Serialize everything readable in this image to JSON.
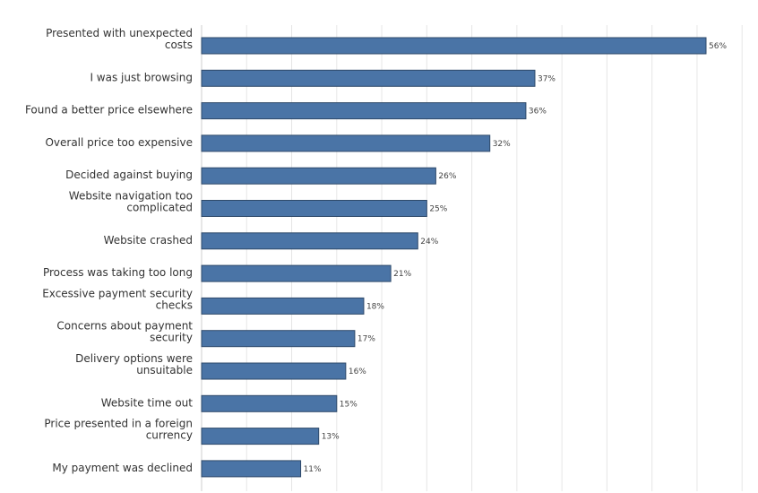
{
  "chart_data": {
    "type": "bar",
    "orientation": "horizontal",
    "title": "",
    "xlabel": "",
    "ylabel": "",
    "xlim": [
      0,
      60
    ],
    "grid": true,
    "value_suffix": "%",
    "bar_color": "#4a74a6",
    "bar_border_color": "#2f4a6a",
    "categories": [
      "Presented with unexpected costs",
      "I was just browsing",
      "Found a better price elsewhere",
      "Overall price too expensive",
      "Decided against buying",
      "Website navigation too complicated",
      "Website crashed",
      "Process was taking too long",
      "Excessive payment security checks",
      "Concerns about payment security",
      "Delivery options were unsuitable",
      "Website time out",
      "Price presented in a foreign currency",
      "My payment was declined"
    ],
    "label_lines": [
      [
        "Presented with unexpected",
        "costs"
      ],
      [
        "I was just browsing"
      ],
      [
        "Found a better price elsewhere"
      ],
      [
        "Overall price too expensive"
      ],
      [
        "Decided against buying"
      ],
      [
        "Website navigation too",
        "complicated"
      ],
      [
        "Website crashed"
      ],
      [
        "Process was taking too long"
      ],
      [
        "Excessive payment security",
        "checks"
      ],
      [
        "Concerns about payment",
        "security"
      ],
      [
        "Delivery options were",
        "unsuitable"
      ],
      [
        "Website time out"
      ],
      [
        "Price presented in a foreign",
        "currency"
      ],
      [
        "My payment was declined"
      ]
    ],
    "values": [
      56,
      37,
      36,
      32,
      26,
      25,
      24,
      21,
      18,
      17,
      16,
      15,
      13,
      11
    ]
  }
}
